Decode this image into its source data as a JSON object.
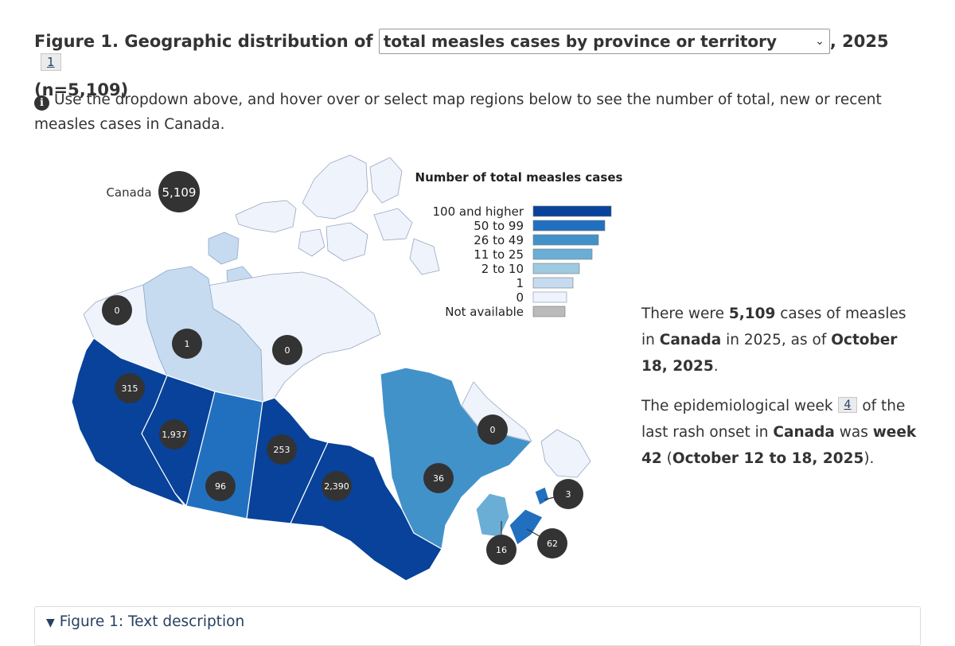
{
  "figure": {
    "title_prefix": "Figure 1. Geographic distribution of",
    "dropdown_value": "total measles cases by province or territory",
    "title_suffix": ", 2025",
    "footnote_ref": "1",
    "n_label": "(n=5,109)"
  },
  "instructions": "Use the dropdown above, and hover over or select map regions below to see the number of total, new or recent measles cases in Canada.",
  "map": {
    "canada": {
      "label": "Canada",
      "value": "5,109"
    },
    "regions": [
      {
        "id": "yukon",
        "value": "0"
      },
      {
        "id": "northwest-territories",
        "value": "1"
      },
      {
        "id": "nunavut",
        "value": "0"
      },
      {
        "id": "british-columbia",
        "value": "315"
      },
      {
        "id": "alberta",
        "value": "1,937"
      },
      {
        "id": "saskatchewan",
        "value": "96"
      },
      {
        "id": "manitoba",
        "value": "253"
      },
      {
        "id": "ontario",
        "value": "2,390"
      },
      {
        "id": "quebec",
        "value": "36"
      },
      {
        "id": "newfoundland-and-labrador",
        "value": "0"
      },
      {
        "id": "prince-edward-island",
        "value": "3"
      },
      {
        "id": "new-brunswick",
        "value": "16"
      },
      {
        "id": "nova-scotia",
        "value": "62"
      }
    ]
  },
  "legend": {
    "title": "Number of total measles cases",
    "items": [
      {
        "label": "100 and higher",
        "color": "#08429a"
      },
      {
        "label": "50 to 99",
        "color": "#2170c0"
      },
      {
        "label": "26 to 49",
        "color": "#4292ca"
      },
      {
        "label": "11 to 25",
        "color": "#6aaed6"
      },
      {
        "label": "2 to 10",
        "color": "#9ecae1"
      },
      {
        "label": "1",
        "color": "#c6dbef"
      },
      {
        "label": "0",
        "color": "#eef3fc"
      },
      {
        "label": "Not available",
        "color": "#bbbbbb"
      }
    ]
  },
  "summary": {
    "p1_a": "There were ",
    "p1_total": "5,109",
    "p1_b": " cases of measles in ",
    "p1_place": "Canada",
    "p1_c": " in 2025, as of ",
    "p1_date": "October 18, 2025",
    "p1_d": ".",
    "p2_a": "The epidemiological week ",
    "p2_ref": "4",
    "p2_b": " of the last rash onset in ",
    "p2_place": "Canada",
    "p2_c": " was ",
    "p2_week": "week 42",
    "p2_d": " (",
    "p2_range": "October 12 to 18, 2025",
    "p2_e": ")."
  },
  "details": {
    "label": "Figure 1: Text description"
  }
}
